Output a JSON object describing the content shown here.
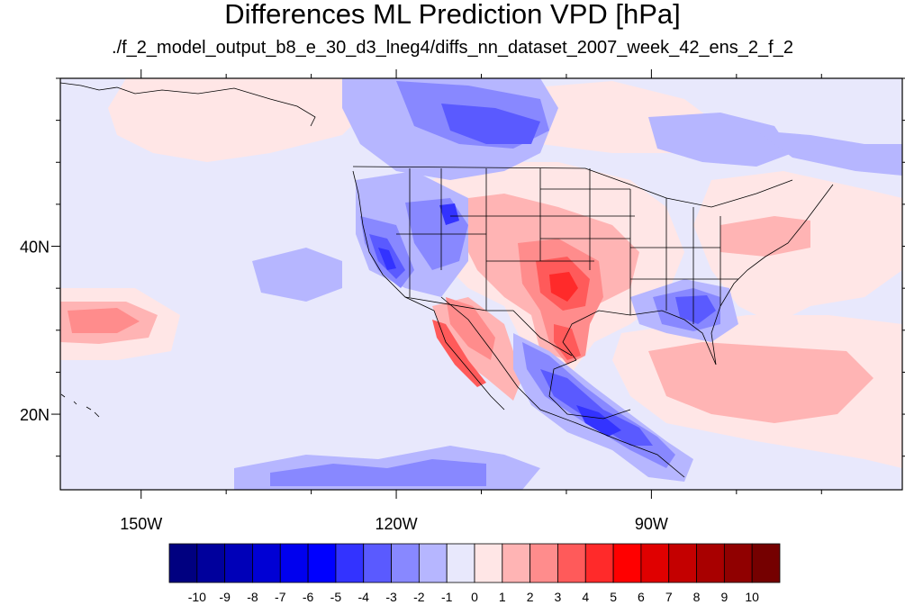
{
  "title": "Differences ML Prediction VPD [hPa]",
  "subtitle": "./f_2_model_output_b8_e_30_d3_lneg4/diffs_nn_dataset_2007_week_42_ens_2_f_2",
  "map": {
    "projection": "cylindrical-equidistant",
    "lon_range": [
      -159.5,
      -60.5
    ],
    "lat_range": [
      11,
      60
    ],
    "lon_ticks": [
      {
        "value": -150,
        "label": "150W"
      },
      {
        "value": -120,
        "label": "120W"
      },
      {
        "value": -90,
        "label": "90W"
      }
    ],
    "lat_ticks": [
      {
        "value": 40,
        "label": "40N"
      },
      {
        "value": 20,
        "label": "20N"
      }
    ]
  },
  "colorbar": {
    "labels": [
      "-10",
      "-9",
      "-8",
      "-7",
      "-6",
      "-5",
      "-4",
      "-3",
      "-2",
      "-1",
      "0",
      "1",
      "2",
      "3",
      "4",
      "5",
      "6",
      "7",
      "8",
      "9",
      "10"
    ],
    "colors": [
      "#000080",
      "#00009c",
      "#0000b8",
      "#0000d4",
      "#0000ee",
      "#0000ff",
      "#3333ff",
      "#5a5aff",
      "#8888ff",
      "#b6b6ff",
      "#e8e8fc",
      "#ffe6e6",
      "#ffb4b4",
      "#ff8c8c",
      "#ff5a5a",
      "#ff2a2a",
      "#ff0000",
      "#e00000",
      "#c40000",
      "#a80000",
      "#900000",
      "#750000"
    ]
  },
  "colors": {
    "background": "#e8e8fc"
  }
}
